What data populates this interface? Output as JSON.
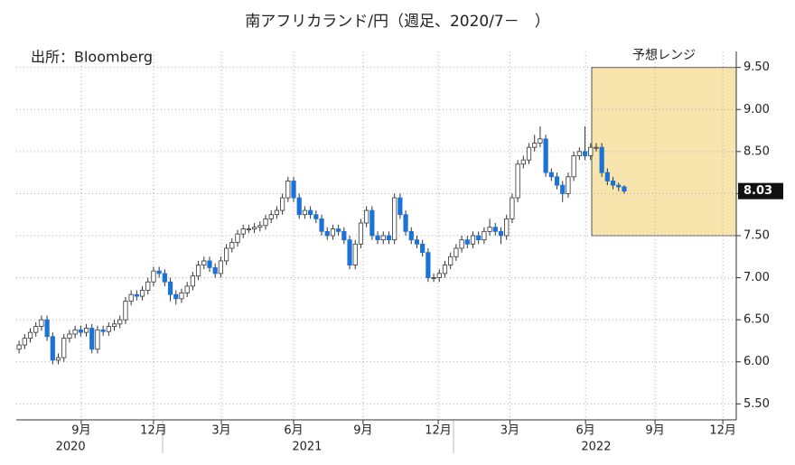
{
  "chart_data": {
    "type": "candlestick",
    "title": "南アフリカランド/円（週足、2020/7－　）",
    "source": "出所：Bloomberg",
    "open": [
      6.15,
      6.2,
      6.28,
      6.35,
      6.42,
      6.5,
      6.3,
      6.02,
      6.05,
      6.28,
      6.33,
      6.38,
      6.35,
      6.4,
      6.15,
      6.38,
      6.36,
      6.42,
      6.45,
      6.5,
      6.72,
      6.8,
      6.78,
      6.85,
      6.95,
      7.08,
      7.05,
      6.95,
      6.8,
      6.75,
      6.82,
      6.9,
      7.02,
      7.15,
      7.2,
      7.12,
      7.05,
      7.2,
      7.35,
      7.42,
      7.52,
      7.58,
      7.58,
      7.6,
      7.62,
      7.7,
      7.75,
      7.8,
      7.95,
      8.15,
      7.95,
      7.75,
      7.8,
      7.75,
      7.7,
      7.55,
      7.5,
      7.58,
      7.55,
      7.45,
      7.15,
      7.4,
      7.65,
      7.8,
      7.5,
      7.45,
      7.5,
      7.45,
      7.95,
      7.75,
      7.55,
      7.45,
      7.4,
      7.3,
      7.0,
      7.0,
      7.05,
      7.15,
      7.25,
      7.35,
      7.45,
      7.4,
      7.5,
      7.45,
      7.55,
      7.6,
      7.55,
      7.5,
      7.7,
      7.95,
      8.35,
      8.4,
      8.55,
      8.6,
      8.65,
      8.25,
      8.2,
      8.1,
      8.0,
      8.2,
      8.45,
      8.5,
      8.45,
      8.55,
      8.55,
      8.25,
      8.15,
      8.1,
      8.08
    ],
    "high": [
      6.25,
      6.33,
      6.4,
      6.47,
      6.55,
      6.55,
      6.35,
      6.1,
      6.33,
      6.38,
      6.43,
      6.43,
      6.45,
      6.45,
      6.43,
      6.43,
      6.47,
      6.5,
      6.55,
      6.77,
      6.85,
      6.85,
      6.9,
      7.0,
      7.13,
      7.13,
      7.1,
      7.0,
      6.85,
      6.87,
      6.95,
      7.07,
      7.2,
      7.25,
      7.25,
      7.17,
      7.25,
      7.4,
      7.47,
      7.57,
      7.63,
      7.63,
      7.65,
      7.67,
      7.75,
      7.8,
      7.85,
      8.0,
      8.2,
      8.2,
      8.0,
      7.85,
      7.85,
      7.8,
      7.75,
      7.6,
      7.63,
      7.63,
      7.6,
      7.5,
      7.45,
      7.7,
      7.85,
      7.85,
      7.55,
      7.55,
      7.55,
      8.0,
      8.0,
      7.8,
      7.6,
      7.5,
      7.45,
      7.35,
      7.05,
      7.1,
      7.2,
      7.3,
      7.4,
      7.5,
      7.5,
      7.55,
      7.55,
      7.6,
      7.7,
      7.65,
      7.6,
      7.75,
      8.0,
      8.4,
      8.45,
      8.6,
      8.7,
      8.8,
      8.7,
      8.3,
      8.25,
      8.15,
      8.25,
      8.5,
      8.55,
      8.8,
      8.6,
      8.6,
      8.6,
      8.3,
      8.2,
      8.13,
      8.1
    ],
    "low": [
      6.1,
      6.15,
      6.23,
      6.3,
      6.37,
      6.25,
      5.97,
      5.97,
      6.0,
      6.23,
      6.28,
      6.3,
      6.3,
      6.1,
      6.1,
      6.31,
      6.31,
      6.37,
      6.4,
      6.45,
      6.67,
      6.73,
      6.73,
      6.8,
      6.9,
      7.0,
      6.9,
      6.72,
      6.68,
      6.7,
      6.77,
      6.85,
      6.97,
      7.1,
      7.07,
      7.0,
      7.0,
      7.15,
      7.3,
      7.37,
      7.47,
      7.53,
      7.53,
      7.55,
      7.57,
      7.65,
      7.7,
      7.75,
      7.9,
      7.9,
      7.7,
      7.7,
      7.7,
      7.65,
      7.5,
      7.45,
      7.45,
      7.5,
      7.4,
      7.1,
      7.1,
      7.35,
      7.6,
      7.45,
      7.4,
      7.4,
      7.4,
      7.4,
      7.7,
      7.5,
      7.4,
      7.35,
      7.25,
      6.95,
      6.95,
      6.95,
      7.0,
      7.1,
      7.2,
      7.3,
      7.35,
      7.35,
      7.4,
      7.4,
      7.5,
      7.5,
      7.4,
      7.45,
      7.65,
      7.9,
      8.3,
      8.35,
      8.5,
      8.55,
      8.2,
      8.15,
      8.05,
      7.9,
      7.95,
      8.15,
      8.4,
      8.4,
      8.4,
      8.5,
      8.2,
      8.1,
      8.05,
      8.03,
      8.0
    ],
    "close": [
      6.2,
      6.28,
      6.35,
      6.42,
      6.5,
      6.3,
      6.02,
      6.05,
      6.28,
      6.33,
      6.38,
      6.35,
      6.4,
      6.15,
      6.38,
      6.36,
      6.42,
      6.45,
      6.5,
      6.72,
      6.8,
      6.78,
      6.85,
      6.95,
      7.08,
      7.05,
      6.95,
      6.8,
      6.75,
      6.82,
      6.9,
      7.02,
      7.15,
      7.2,
      7.12,
      7.05,
      7.2,
      7.35,
      7.42,
      7.52,
      7.58,
      7.58,
      7.6,
      7.62,
      7.7,
      7.75,
      7.8,
      7.95,
      8.15,
      7.95,
      7.75,
      7.8,
      7.75,
      7.7,
      7.55,
      7.5,
      7.58,
      7.55,
      7.45,
      7.15,
      7.4,
      7.65,
      7.8,
      7.5,
      7.45,
      7.5,
      7.45,
      7.95,
      7.75,
      7.55,
      7.45,
      7.4,
      7.3,
      7.0,
      7.0,
      7.05,
      7.15,
      7.25,
      7.35,
      7.45,
      7.4,
      7.5,
      7.45,
      7.55,
      7.6,
      7.55,
      7.5,
      7.7,
      7.95,
      8.35,
      8.4,
      8.55,
      8.6,
      8.65,
      8.25,
      8.2,
      8.1,
      8.0,
      8.2,
      8.45,
      8.5,
      8.45,
      8.55,
      8.55,
      8.25,
      8.15,
      8.1,
      8.08,
      8.03
    ],
    "up_color": "#ffffff",
    "down_color": "#1a73d9",
    "wick_color": "#333333",
    "xlim": [
      0,
      128.5
    ],
    "ylim": [
      5.31,
      9.69
    ],
    "yticks": [
      {
        "value": 5.5,
        "label": "5.50"
      },
      {
        "value": 6,
        "label": "6.00"
      },
      {
        "value": 6.5,
        "label": "6.50"
      },
      {
        "value": 7,
        "label": "7.00"
      },
      {
        "value": 7.5,
        "label": "7.50"
      },
      {
        "value": 8,
        "label": "8.00"
      },
      {
        "value": 8.5,
        "label": "8.50"
      },
      {
        "value": 9,
        "label": "9.00"
      },
      {
        "value": 9.5,
        "label": "9.50"
      }
    ],
    "xticks": [
      {
        "value": 11.6,
        "label": "9月"
      },
      {
        "value": 24.5,
        "label": "12月"
      },
      {
        "value": 36.6,
        "label": "3月"
      },
      {
        "value": 49.5,
        "label": "6月"
      },
      {
        "value": 61.9,
        "label": "9月"
      },
      {
        "value": 75.3,
        "label": "12月"
      },
      {
        "value": 88.1,
        "label": "3月"
      },
      {
        "value": 101.6,
        "label": "6月"
      },
      {
        "value": 114,
        "label": "9月"
      },
      {
        "value": 126.1,
        "label": "12月"
      }
    ],
    "year_labels": [
      {
        "value": 9.7,
        "label": "2020"
      },
      {
        "value": 51.9,
        "label": "2021"
      },
      {
        "value": 103.5,
        "label": "2022"
      }
    ],
    "grid": true,
    "forecast_range": {
      "label": "予想レンジ",
      "xlim": [
        102.7,
        128.5
      ],
      "ylim": [
        7.5,
        9.5
      ],
      "color": "#f5d98a"
    }
  }
}
